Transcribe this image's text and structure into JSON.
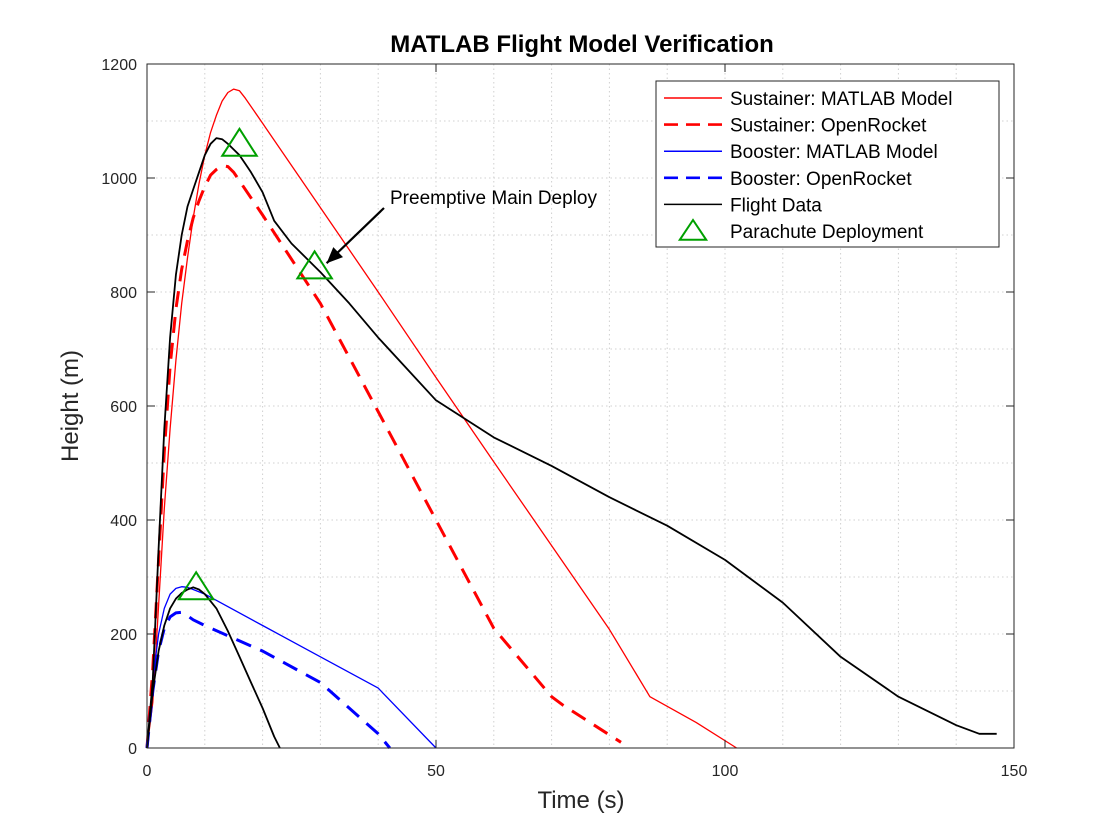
{
  "chart_data": {
    "type": "line",
    "title": "MATLAB Flight Model Verification",
    "xlabel": "Time (s)",
    "ylabel": "Height (m)",
    "xlim": [
      0,
      150
    ],
    "ylim": [
      0,
      1200
    ],
    "x_ticks": [
      0,
      50,
      100,
      150
    ],
    "y_ticks": [
      0,
      200,
      400,
      600,
      800,
      1000,
      1200
    ],
    "grid": true,
    "minor_grid": true,
    "legend_position": "top-right",
    "annotation": {
      "text": "Preemptive Main Deploy",
      "points_to": [
        29,
        840
      ]
    },
    "series": [
      {
        "name": "Sustainer: MATLAB Model",
        "color": "#ff0000",
        "style": "solid",
        "x": [
          0,
          1,
          2,
          3,
          4,
          5,
          6,
          7,
          8,
          9,
          10,
          11,
          12,
          13,
          14,
          15,
          16,
          17,
          20,
          30,
          40,
          50,
          60,
          70,
          80,
          87,
          95,
          102
        ],
        "y": [
          0,
          80,
          250,
          420,
          560,
          680,
          780,
          860,
          930,
          990,
          1040,
          1080,
          1110,
          1135,
          1150,
          1156,
          1153,
          1140,
          1096,
          948,
          800,
          650,
          502,
          355,
          208,
          90,
          45,
          0
        ]
      },
      {
        "name": "Sustainer: OpenRocket",
        "color": "#ff0000",
        "style": "dashed",
        "x": [
          0,
          1,
          2,
          3,
          4,
          5,
          6,
          7,
          8,
          9,
          10,
          11,
          12,
          13,
          14,
          15,
          20,
          30,
          40,
          50,
          60,
          70,
          72,
          82
        ],
        "y": [
          0,
          140,
          330,
          520,
          670,
          770,
          840,
          890,
          930,
          960,
          985,
          1005,
          1015,
          1022,
          1020,
          1010,
          935,
          780,
          590,
          400,
          210,
          90,
          75,
          10
        ]
      },
      {
        "name": "Booster: MATLAB Model",
        "color": "#0000ff",
        "style": "solid",
        "x": [
          0,
          1,
          2,
          3,
          4,
          5,
          6,
          7,
          8,
          10,
          20,
          30,
          40,
          50
        ],
        "y": [
          0,
          120,
          200,
          245,
          270,
          280,
          283,
          282,
          278,
          270,
          215,
          160,
          105,
          0
        ]
      },
      {
        "name": "Booster: OpenRocket",
        "color": "#0000ff",
        "style": "dashed",
        "x": [
          0,
          1,
          2,
          3,
          4,
          5,
          6,
          7,
          8,
          10,
          20,
          30,
          40,
          42
        ],
        "y": [
          0,
          100,
          170,
          210,
          230,
          237,
          238,
          232,
          225,
          215,
          170,
          115,
          25,
          0
        ]
      },
      {
        "name": "Flight Data",
        "color": "#000000",
        "style": "solid",
        "x": [
          0,
          1,
          2,
          3,
          4,
          5,
          6,
          7,
          8,
          9,
          10,
          11,
          12,
          13,
          14,
          15,
          16,
          17,
          18,
          20,
          22,
          25,
          28,
          30,
          35,
          40,
          50,
          60,
          70,
          80,
          90,
          100,
          110,
          120,
          130,
          140,
          144,
          146,
          147
        ],
        "y": [
          0,
          120,
          350,
          560,
          720,
          830,
          900,
          950,
          980,
          1010,
          1040,
          1060,
          1070,
          1068,
          1060,
          1050,
          1040,
          1025,
          1010,
          975,
          925,
          885,
          855,
          835,
          780,
          720,
          610,
          545,
          495,
          440,
          390,
          330,
          255,
          160,
          90,
          40,
          25,
          25,
          25
        ]
      },
      {
        "name": "",
        "color": "#000000",
        "style": "solid",
        "x": [
          0,
          1,
          2,
          3,
          4,
          5,
          6,
          7,
          8,
          9,
          10,
          12,
          14,
          16,
          18,
          20,
          22,
          23
        ],
        "y": [
          0,
          100,
          170,
          215,
          245,
          262,
          272,
          278,
          282,
          278,
          270,
          245,
          205,
          160,
          115,
          70,
          20,
          0
        ]
      }
    ],
    "parachute_deployment": {
      "name": "Parachute Deployment",
      "color": "#00a000",
      "points": [
        {
          "x": 8.5,
          "y": 282
        },
        {
          "x": 16,
          "y": 1060
        },
        {
          "x": 29,
          "y": 845
        }
      ]
    }
  }
}
